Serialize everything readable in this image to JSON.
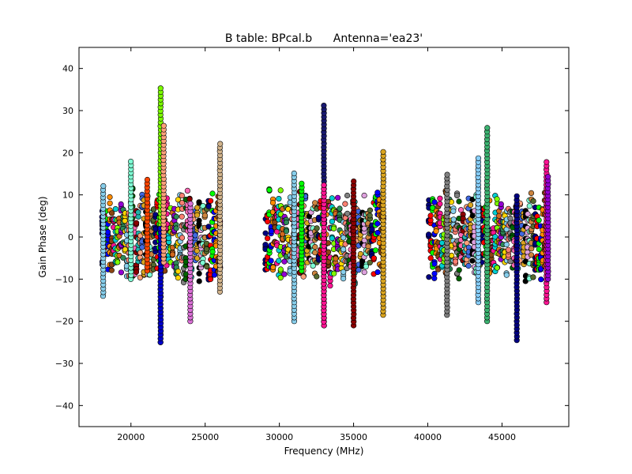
{
  "chart_data": {
    "type": "scatter",
    "title": "B table: BPcal.b      Antenna='ea23'",
    "xlabel": "Frequency (MHz)",
    "ylabel": "Gain Phase (deg)",
    "xlim": [
      16500,
      49500
    ],
    "ylim": [
      -45,
      45
    ],
    "xticks": [
      20000,
      25000,
      30000,
      35000,
      40000,
      45000
    ],
    "yticks": [
      -40,
      -30,
      -20,
      -10,
      0,
      10,
      20,
      30,
      40
    ],
    "grid": false,
    "marker": "circle",
    "bands": [
      {
        "start": 18000,
        "end": 26000,
        "spw_width": 128
      },
      {
        "start": 29000,
        "end": 37000,
        "spw_width": 128
      },
      {
        "start": 40000,
        "end": 48000,
        "spw_width": 128
      }
    ],
    "typical_range": [
      -10,
      10
    ],
    "outlier_spikes": [
      {
        "x": 18130,
        "y_min": -14,
        "y_max": 13,
        "color": "#87ceeb"
      },
      {
        "x": 20000,
        "y_min": -10,
        "y_max": 18,
        "color": "#7fffd4"
      },
      {
        "x": 21100,
        "y_min": -8,
        "y_max": 14.5,
        "color": "#ff4500"
      },
      {
        "x": 22000,
        "y_min": -25,
        "y_max": 35.5,
        "color": "#7cfc00"
      },
      {
        "x": 22000,
        "y_min": -25,
        "y_max": 2,
        "color": "#0000cd"
      },
      {
        "x": 22200,
        "y_min": -6,
        "y_max": 27,
        "color": "#ffa07a"
      },
      {
        "x": 24000,
        "y_min": -20,
        "y_max": 8,
        "color": "#da70d6"
      },
      {
        "x": 26000,
        "y_min": -13,
        "y_max": 22.5,
        "color": "#d2b48c"
      },
      {
        "x": 31000,
        "y_min": -20,
        "y_max": 15.5,
        "color": "#87ceeb"
      },
      {
        "x": 31500,
        "y_min": -8,
        "y_max": 13,
        "color": "#00ff00"
      },
      {
        "x": 33000,
        "y_min": -21,
        "y_max": 31.5,
        "color": "#191970"
      },
      {
        "x": 33000,
        "y_min": -21,
        "y_max": 13,
        "color": "#ff1493"
      },
      {
        "x": 35000,
        "y_min": -21,
        "y_max": 14,
        "color": "#8b0000"
      },
      {
        "x": 37000,
        "y_min": -18.5,
        "y_max": 20.5,
        "color": "#daa520"
      },
      {
        "x": 41300,
        "y_min": -18.5,
        "y_max": 15,
        "color": "#808080"
      },
      {
        "x": 43400,
        "y_min": -15.5,
        "y_max": 19,
        "color": "#87cefa"
      },
      {
        "x": 44000,
        "y_min": -20,
        "y_max": 26,
        "color": "#3cb371"
      },
      {
        "x": 46000,
        "y_min": -24.5,
        "y_max": 10.5,
        "color": "#000080"
      },
      {
        "x": 48000,
        "y_min": -15.5,
        "y_max": 18,
        "color": "#ff1493"
      },
      {
        "x": 48100,
        "y_min": -10,
        "y_max": 15,
        "color": "#9400d3"
      }
    ],
    "series_colors": [
      "#000080",
      "#ff0000",
      "#00ff00",
      "#0000ff",
      "#ff8c00",
      "#8b4513",
      "#ff1493",
      "#00ced1",
      "#7fff00",
      "#d2691e",
      "#9400d3",
      "#2e8b57",
      "#ffd700",
      "#87ceeb",
      "#fa8072",
      "#808080",
      "#006400",
      "#ff69b4",
      "#8b0000",
      "#20b2aa",
      "#ffa07a",
      "#4169e1",
      "#daa520",
      "#000000",
      "#dda0dd",
      "#7fffd4",
      "#cd853f",
      "#556b2f"
    ]
  }
}
